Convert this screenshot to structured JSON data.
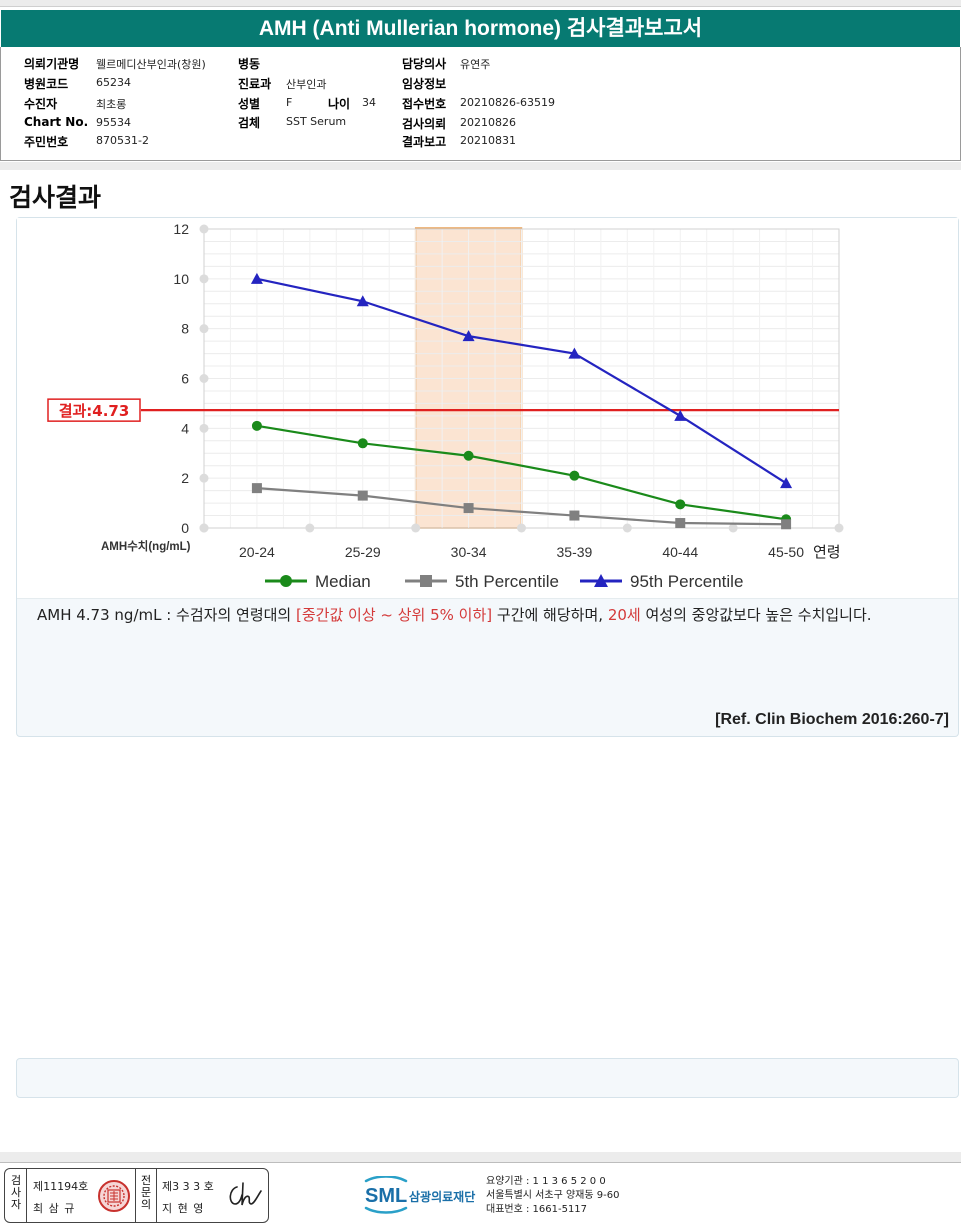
{
  "report_title": "AMH (Anti Mullerian hormone) 검사결과보고서",
  "patient_info": {
    "col1": [
      {
        "label": "의뢰기관명",
        "value": "웰르메디산부인과(창원)"
      },
      {
        "label": "병원코드",
        "value": "65234"
      },
      {
        "label": "수진자",
        "value": "최초롱"
      },
      {
        "label": "Chart No.",
        "value": "95534"
      },
      {
        "label": "주민번호",
        "value": "870531-2"
      }
    ],
    "col2": [
      {
        "label": "병동",
        "value": ""
      },
      {
        "label": "진료과",
        "value": "산부인과"
      },
      {
        "label": "성별",
        "value": "F"
      },
      {
        "label": "검체",
        "value": "SST Serum"
      }
    ],
    "age": {
      "label": "나이",
      "value": "34"
    },
    "col3": [
      {
        "label": "담당의사",
        "value": "유연주"
      },
      {
        "label": "임상정보",
        "value": ""
      },
      {
        "label": "접수번호",
        "value": "20210826-63519"
      },
      {
        "label": "검사의뢰",
        "value": "20210826"
      },
      {
        "label": "결과보고",
        "value": "20210831"
      }
    ]
  },
  "section_title": "검사결과",
  "chart_data": {
    "type": "line",
    "categories": [
      "20-24",
      "25-29",
      "30-34",
      "35-39",
      "40-44",
      "45-50"
    ],
    "xlabel": "연령",
    "ylabel": "AMH수치(ng/mL)",
    "ylim": [
      0,
      12
    ],
    "yticks": [
      "0",
      "2",
      "4",
      "6",
      "8",
      "10",
      "12"
    ],
    "grid": true,
    "legend_position": "bottom",
    "highlight_category": "30-34",
    "result_line": {
      "label": "결과:4.73",
      "value": 4.73,
      "color": "#e02020"
    },
    "series": [
      {
        "name": "Median",
        "values": [
          4.1,
          3.4,
          2.9,
          2.1,
          0.95,
          0.35
        ],
        "color": "#1a8a1a",
        "marker": "circle"
      },
      {
        "name": "5th Percentile",
        "values": [
          1.6,
          1.3,
          0.8,
          0.5,
          0.2,
          0.15
        ],
        "color": "#808080",
        "marker": "square"
      },
      {
        "name": "95th Percentile",
        "values": [
          10.0,
          9.1,
          7.7,
          7.0,
          4.5,
          1.8
        ],
        "color": "#2424c0",
        "marker": "triangle"
      }
    ]
  },
  "interpretation": {
    "part1": "AMH  4.73 ng/mL : 수검자의 연령대의 ",
    "highlight1": "[중간값 이상 ~ 상위 5% 이하]",
    "part2": " 구간에 해당하며, ",
    "highlight2": "20세",
    "part3": " 여성의 중앙값보다 높은 수치입니다."
  },
  "reference": "[Ref. Clin Biochem 2016:260-7]",
  "footer": {
    "tester_label": "검사자",
    "tester_no": "제11194호",
    "tester_name": "최 삼 규",
    "specialist_label": "전문의",
    "specialist_no": "제3 3 3 호",
    "specialist_name": "지 현 영",
    "org_logo": "SML",
    "org_name": "삼광의료재단",
    "org_code": "요양기관 : 1 1 3 6 5 2 0 0",
    "org_address": "서울특별시 서초구 양재동 9-60",
    "org_phone": "대표번호 : 1661-5117"
  }
}
